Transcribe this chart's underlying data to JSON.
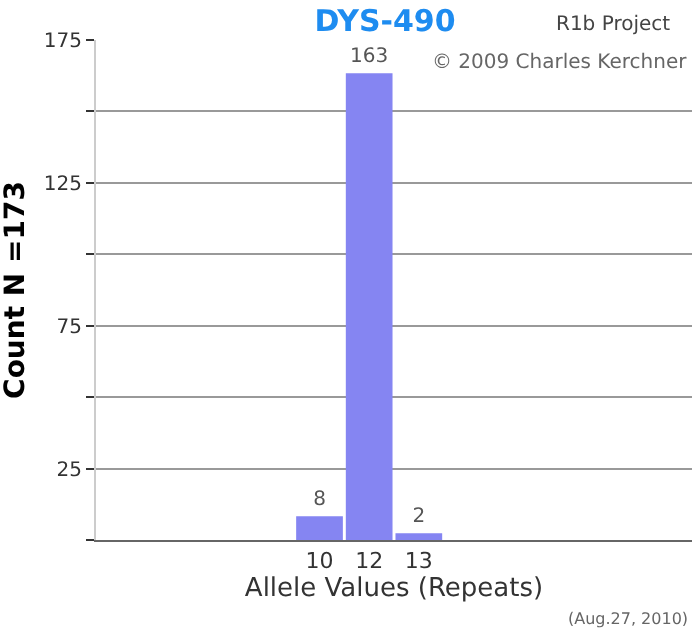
{
  "chart_data": {
    "type": "bar",
    "title": "DYS-490",
    "xlabel": "Allele Values (Repeats)",
    "ylabel": "Count N =173",
    "categories": [
      null,
      null,
      null,
      null,
      "10",
      "12",
      "13",
      null,
      null,
      null,
      null,
      null
    ],
    "values": [
      null,
      null,
      null,
      null,
      8,
      163,
      2,
      null,
      null,
      null,
      null,
      null
    ],
    "color": "#8585f2",
    "data_labels": true,
    "ylim": [
      0,
      175
    ],
    "yticks": [
      {
        "value": 0,
        "label": null
      },
      25,
      {
        "value": 50,
        "label": null
      },
      75,
      {
        "value": 100,
        "label": null
      },
      125,
      {
        "value": 150,
        "label": null
      },
      175
    ],
    "grid": "y",
    "annotations": [
      "R1b Project",
      "© 2009 Charles Kerchner",
      "(Aug.27, 2010)"
    ]
  }
}
